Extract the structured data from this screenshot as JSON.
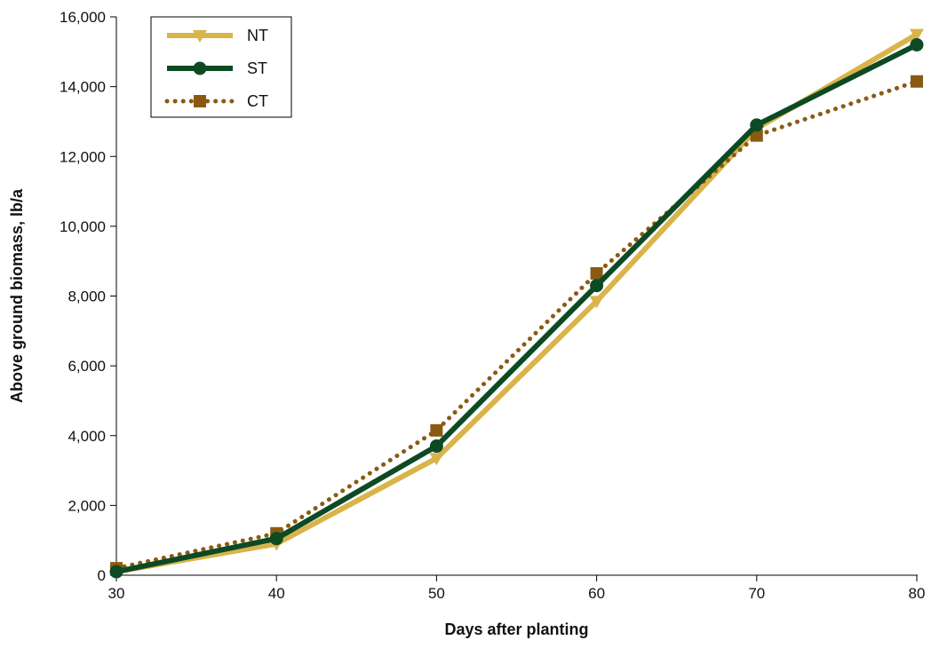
{
  "chart_data": {
    "type": "line",
    "title": "",
    "xlabel": "Days after planting",
    "ylabel": "Above ground biomass, lb/a",
    "x": [
      30,
      40,
      50,
      60,
      70,
      80
    ],
    "xlim": [
      30,
      80
    ],
    "ylim": [
      0,
      16000
    ],
    "x_ticks": [
      "30",
      "40",
      "50",
      "60",
      "70",
      "80"
    ],
    "y_ticks": [
      "0",
      "2,000",
      "4,000",
      "6,000",
      "8,000",
      "10,000",
      "12,000",
      "14,000",
      "16,000"
    ],
    "y_tick_values": [
      0,
      2000,
      4000,
      6000,
      8000,
      10000,
      12000,
      14000,
      16000
    ],
    "grid": false,
    "legend_position": "top-left",
    "series": [
      {
        "name": "NT",
        "values": [
          100,
          900,
          3350,
          7850,
          12800,
          15500
        ],
        "color": "#d9b44a",
        "marker": "triangle-down",
        "style": "solid"
      },
      {
        "name": "ST",
        "values": [
          100,
          1050,
          3700,
          8300,
          12900,
          15200
        ],
        "color": "#0d4a24",
        "marker": "circle",
        "style": "solid"
      },
      {
        "name": "CT",
        "values": [
          200,
          1200,
          4150,
          8650,
          12600,
          14150
        ],
        "color": "#8b5a12",
        "marker": "square",
        "style": "dotted"
      }
    ]
  }
}
